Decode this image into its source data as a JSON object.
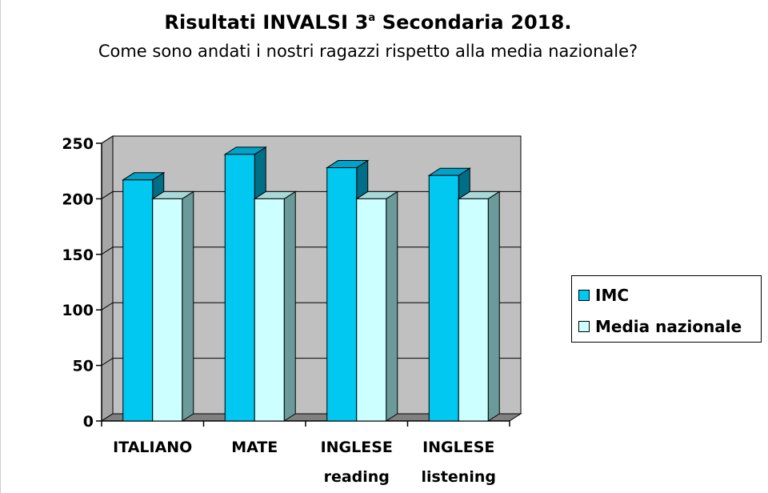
{
  "header": {
    "title_main": "Risultati INVALSI 3",
    "title_sup": "a",
    "title_rest": " Secondaria 2018.",
    "subtitle": "Come sono andati i nostri ragazzi rispetto alla media nazionale?"
  },
  "legend": {
    "items": [
      {
        "label": "IMC",
        "color": "#00c8f0"
      },
      {
        "label": "Media nazionale",
        "color": "#ccffff"
      }
    ]
  },
  "colors": {
    "plot_wall": "#c0c0c0",
    "floor": "#808080",
    "grid": "#000000",
    "series_1_front": "#00c8f0",
    "series_1_top": "#00a2c8",
    "series_1_side": "#006e87",
    "series_2_front": "#ccffff",
    "series_2_top": "#a8d8d8",
    "series_2_side": "#6a9a9a"
  },
  "chart_data": {
    "type": "bar",
    "title": "Risultati INVALSI 3a Secondaria 2018.",
    "subtitle": "Come sono andati i nostri ragazzi rispetto alla media nazionale?",
    "categories": [
      [
        "ITALIANO"
      ],
      [
        "MATE"
      ],
      [
        "INGLESE",
        "reading"
      ],
      [
        "INGLESE",
        "listening"
      ]
    ],
    "series": [
      {
        "name": "IMC",
        "values": [
          217,
          240,
          228,
          221
        ]
      },
      {
        "name": "Media nazionale",
        "values": [
          200,
          200,
          200,
          200
        ]
      }
    ],
    "y_ticks": [
      0,
      50,
      100,
      150,
      200,
      250
    ],
    "ylim": [
      0,
      250
    ],
    "grid": true,
    "legend_position": "right",
    "xlabel": "",
    "ylabel": ""
  }
}
